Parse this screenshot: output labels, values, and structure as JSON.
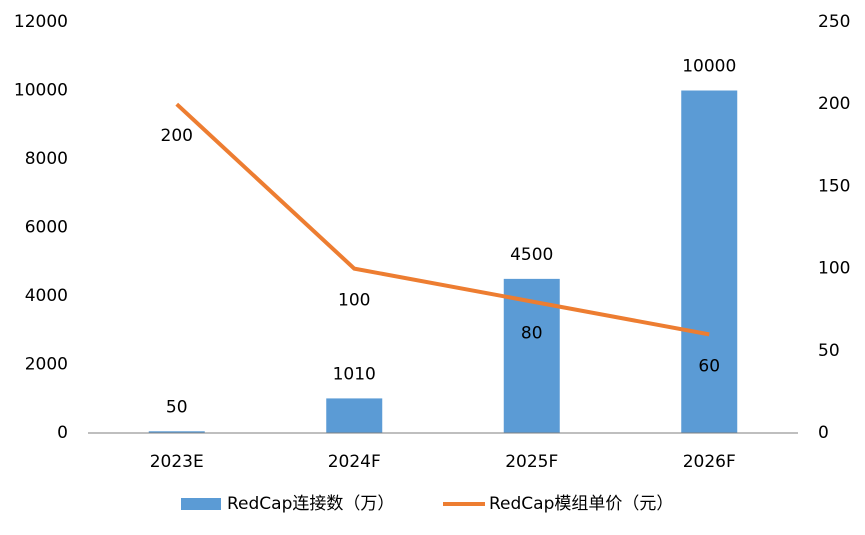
{
  "chart_data": {
    "type": "bar",
    "categories": [
      "2023E",
      "2024F",
      "2025F",
      "2026F"
    ],
    "series": [
      {
        "name": "RedCap连接数（万）",
        "type": "bar",
        "color": "#5b9bd5",
        "values": [
          50,
          1010,
          4500,
          10000
        ]
      },
      {
        "name": "RedCap模组单价（元）",
        "type": "line",
        "axis": "y2",
        "color": "#ed7d31",
        "values": [
          200,
          100,
          80,
          60
        ]
      }
    ],
    "ylim": [
      0,
      12000
    ],
    "yticks": [
      0,
      2000,
      4000,
      6000,
      8000,
      10000,
      12000
    ],
    "y2lim": [
      0,
      250
    ],
    "y2ticks": [
      0,
      50,
      100,
      150,
      200,
      250
    ],
    "grid": false,
    "legend": "bottom"
  }
}
